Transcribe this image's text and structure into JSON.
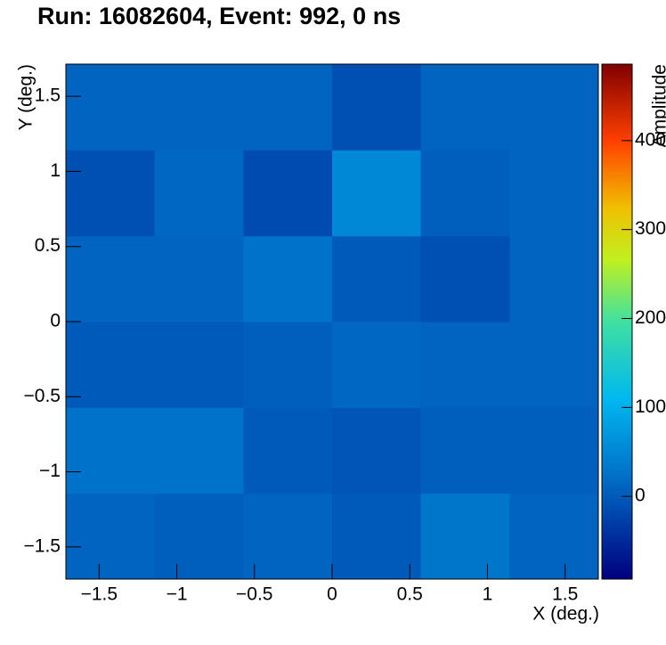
{
  "chart_data": {
    "type": "heatmap",
    "title": "Run: 16082604, Event: 992, 0 ns",
    "x_label": "X (deg.)",
    "y_label": "Y (deg.)",
    "z_label": "Amplitude",
    "xbins": [
      -1.714,
      -1.143,
      -0.571,
      0,
      0.571,
      1.143,
      1.714
    ],
    "ybins": [
      -1.714,
      -1.143,
      -0.571,
      0,
      0.571,
      1.143,
      1.714
    ],
    "values": [
      [
        10,
        5,
        10,
        0,
        30,
        10
      ],
      [
        25,
        25,
        0,
        -5,
        5,
        5
      ],
      [
        0,
        0,
        5,
        15,
        10,
        10
      ],
      [
        10,
        10,
        25,
        0,
        -10,
        10
      ],
      [
        -10,
        15,
        -15,
        50,
        5,
        10
      ],
      [
        10,
        10,
        10,
        -10,
        10,
        10
      ]
    ],
    "xlim": [
      -1.714,
      1.714
    ],
    "ylim": [
      -1.714,
      1.714
    ],
    "zlim": [
      -93,
      486
    ],
    "xticks": [
      {
        "value": -1.5,
        "label": "−1.5"
      },
      {
        "value": -1,
        "label": "−1"
      },
      {
        "value": -0.5,
        "label": "−0.5"
      },
      0,
      0.5,
      1,
      1.5
    ],
    "yticks": [
      {
        "value": -1.5,
        "label": "−1.5"
      },
      {
        "value": -1,
        "label": "−1"
      },
      {
        "value": -0.5,
        "label": "−0.5"
      },
      0,
      0.5,
      1,
      1.5
    ],
    "zticks": [
      0,
      100,
      200,
      300,
      400
    ],
    "colorscale": [
      [
        0,
        "#00007f"
      ],
      [
        0.2,
        "#0070c8"
      ],
      [
        0.35,
        "#00b8f0"
      ],
      [
        0.5,
        "#40e0a0"
      ],
      [
        0.62,
        "#c0f020"
      ],
      [
        0.72,
        "#f0c000"
      ],
      [
        0.85,
        "#ff4000"
      ],
      [
        1,
        "#800000"
      ]
    ]
  }
}
